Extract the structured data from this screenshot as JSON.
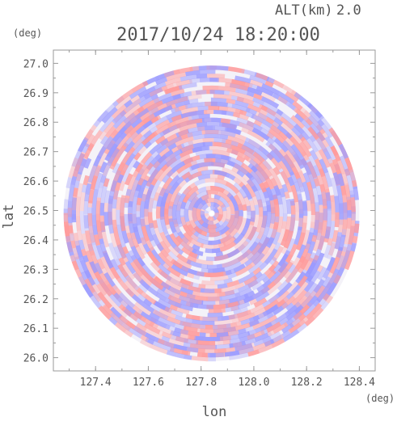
{
  "header": {
    "alt_label": "ALT(km)",
    "alt_value": "2.0",
    "datetime": "2017/10/24 18:20:00"
  },
  "chart_data": {
    "type": "heatmap",
    "title": "2017/10/24 18:20:00",
    "xlabel": "lon",
    "ylabel": "lat",
    "xunit": "(deg)",
    "yunit": "(deg)",
    "xlim": [
      127.24,
      128.46
    ],
    "ylim": [
      25.955,
      27.045
    ],
    "x_ticks": [
      127.4,
      127.6,
      127.8,
      128.0,
      128.2,
      128.4
    ],
    "x_tick_labels": [
      "127.4",
      "127.6",
      "127.8",
      "128.0",
      "128.2",
      "128.4"
    ],
    "y_ticks": [
      26.0,
      26.1,
      26.2,
      26.3,
      26.4,
      26.5,
      26.6,
      26.7,
      26.8,
      26.9,
      27.0
    ],
    "y_tick_labels": [
      "26.0",
      "26.1",
      "26.2",
      "26.3",
      "26.4",
      "26.5",
      "26.6",
      "26.7",
      "26.8",
      "26.9",
      "27.0"
    ],
    "radar_center": [
      127.84,
      26.49
    ],
    "radar_radius_deg": 0.56,
    "colors": {
      "positive": "#ff9999",
      "negative": "#9999ff"
    }
  }
}
